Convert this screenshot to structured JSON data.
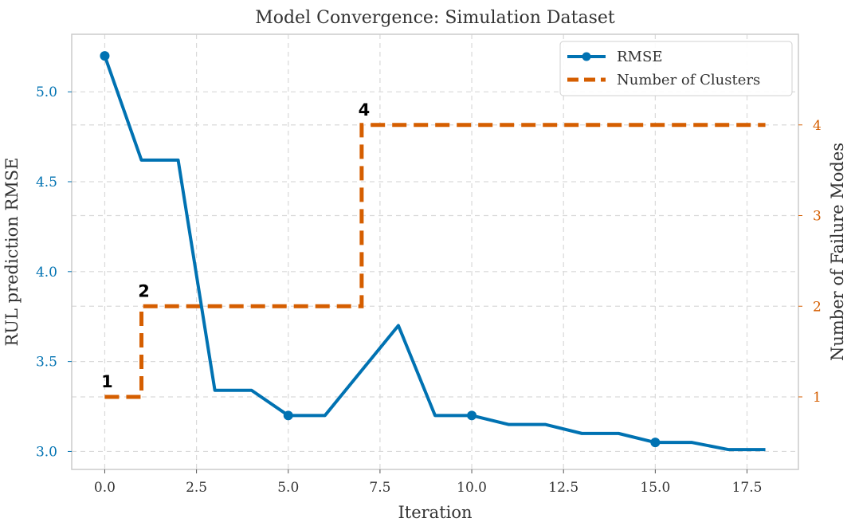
{
  "chart_data": {
    "type": "line",
    "title": "Model Convergence: Simulation Dataset",
    "xlabel": "Iteration",
    "ylabel": "RUL prediction RMSE",
    "y2label": "Number of Failure Modes",
    "xlim": [
      -0.9,
      18.9
    ],
    "ylim": [
      2.9,
      5.32
    ],
    "y2lim": [
      0.2,
      5.0
    ],
    "grid": true,
    "legend_position": "top-right",
    "x_ticks": [
      0.0,
      2.5,
      5.0,
      7.5,
      10.0,
      12.5,
      15.0,
      17.5
    ],
    "x_tick_labels": [
      "0.0",
      "2.5",
      "5.0",
      "7.5",
      "10.0",
      "12.5",
      "15.0",
      "17.5"
    ],
    "y_ticks": [
      3.0,
      3.5,
      4.0,
      4.5,
      5.0
    ],
    "y_tick_labels": [
      "3.0",
      "3.5",
      "4.0",
      "4.5",
      "5.0"
    ],
    "y2_ticks": [
      1,
      2,
      3,
      4
    ],
    "y2_tick_labels": [
      "1",
      "2",
      "3",
      "4"
    ],
    "series": [
      {
        "name": "RMSE",
        "axis": "left",
        "color": "#0072b2",
        "style": "solid",
        "x": [
          0,
          1,
          2,
          3,
          4,
          5,
          6,
          7,
          8,
          9,
          10,
          11,
          12,
          13,
          14,
          15,
          16,
          17,
          18
        ],
        "values": [
          5.2,
          4.62,
          4.62,
          3.34,
          3.34,
          3.2,
          3.2,
          3.45,
          3.7,
          3.2,
          3.2,
          3.15,
          3.15,
          3.1,
          3.1,
          3.05,
          3.05,
          3.01,
          3.01
        ],
        "markers_at": [
          0,
          5,
          10,
          15
        ]
      },
      {
        "name": "Number of Clusters",
        "axis": "right",
        "color": "#d55e00",
        "style": "dashed",
        "steps": [
          {
            "x_start": 0,
            "x_end": 1,
            "value": 1
          },
          {
            "x_start": 1,
            "x_end": 7,
            "value": 2
          },
          {
            "x_start": 7,
            "x_end": 18,
            "value": 4
          }
        ]
      }
    ],
    "annotations": [
      {
        "text": "1",
        "x": 0,
        "value": 1
      },
      {
        "text": "2",
        "x": 1,
        "value": 2
      },
      {
        "text": "4",
        "x": 7,
        "value": 4
      }
    ]
  }
}
